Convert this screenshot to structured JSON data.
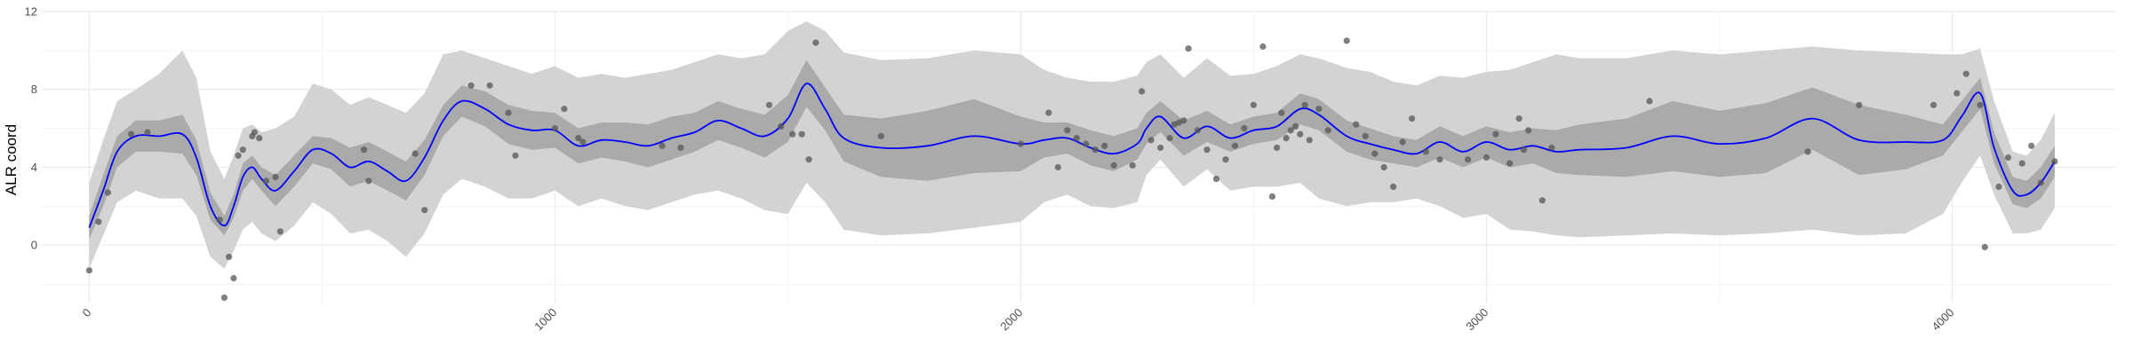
{
  "chart_data": {
    "type": "line",
    "title": "",
    "xlabel": "",
    "ylabel": "ALR coord",
    "xlim": [
      -100,
      4350
    ],
    "ylim": [
      -3,
      12
    ],
    "x_ticks": [
      0,
      1000,
      2000,
      3000,
      4000
    ],
    "x_tick_labels": [
      "0",
      "1000",
      "2000",
      "3000",
      "4000"
    ],
    "y_ticks": [
      0,
      4,
      8,
      12
    ],
    "y_tick_labels": [
      "0",
      "4",
      "8",
      "12"
    ],
    "grid": true,
    "legend": "none",
    "series": [
      {
        "role": "mean",
        "color": "#0000ff",
        "x": [
          0,
          30,
          60,
          100,
          150,
          200,
          230,
          260,
          290,
          310,
          330,
          350,
          370,
          400,
          440,
          480,
          520,
          560,
          600,
          640,
          680,
          720,
          760,
          800,
          850,
          900,
          950,
          1000,
          1050,
          1100,
          1150,
          1200,
          1250,
          1300,
          1350,
          1400,
          1450,
          1500,
          1540,
          1580,
          1620,
          1700,
          1800,
          1900,
          2000,
          2050,
          2100,
          2150,
          2200,
          2250,
          2270,
          2300,
          2350,
          2400,
          2450,
          2500,
          2550,
          2600,
          2640,
          2700,
          2750,
          2800,
          2850,
          2900,
          2950,
          3000,
          3050,
          3100,
          3150,
          3200,
          3300,
          3400,
          3500,
          3600,
          3700,
          3800,
          3900,
          3980,
          4020,
          4060,
          4090,
          4130,
          4160,
          4190,
          4220
        ],
        "y": [
          0.9,
          2.8,
          4.8,
          5.6,
          5.6,
          5.7,
          4.5,
          2.0,
          1.0,
          2.0,
          3.5,
          4.0,
          3.4,
          2.8,
          3.8,
          4.9,
          4.7,
          4.0,
          4.3,
          3.8,
          3.3,
          4.5,
          6.4,
          7.4,
          7.0,
          6.2,
          5.9,
          5.9,
          5.1,
          5.4,
          5.3,
          5.1,
          5.5,
          5.8,
          6.4,
          6.0,
          5.6,
          6.5,
          8.3,
          7.0,
          5.5,
          5.0,
          5.1,
          5.6,
          5.2,
          5.4,
          5.5,
          5.0,
          4.7,
          5.2,
          6.0,
          6.6,
          5.5,
          6.1,
          5.5,
          5.9,
          6.1,
          7.0,
          6.7,
          5.6,
          5.2,
          4.9,
          4.7,
          5.3,
          4.8,
          5.3,
          4.9,
          5.1,
          4.8,
          4.9,
          5.0,
          5.6,
          5.2,
          5.5,
          6.5,
          5.4,
          5.3,
          5.4,
          6.6,
          7.8,
          5.0,
          2.8,
          2.6,
          3.2,
          4.3
        ]
      },
      {
        "role": "inner-band",
        "color": "#aaaaaa",
        "x": [
          0,
          30,
          60,
          100,
          150,
          200,
          230,
          260,
          290,
          310,
          330,
          350,
          370,
          400,
          440,
          480,
          520,
          560,
          600,
          640,
          680,
          720,
          760,
          800,
          850,
          900,
          950,
          1000,
          1050,
          1100,
          1150,
          1200,
          1250,
          1300,
          1350,
          1400,
          1450,
          1500,
          1540,
          1580,
          1620,
          1700,
          1800,
          1900,
          2000,
          2050,
          2100,
          2150,
          2200,
          2250,
          2270,
          2300,
          2350,
          2400,
          2450,
          2500,
          2550,
          2600,
          2640,
          2700,
          2750,
          2800,
          2850,
          2900,
          2950,
          3000,
          3050,
          3100,
          3150,
          3200,
          3300,
          3400,
          3500,
          3600,
          3700,
          3800,
          3900,
          3980,
          4020,
          4060,
          4090,
          4130,
          4160,
          4190,
          4220
        ],
        "lower": [
          0.3,
          2.0,
          4.0,
          4.8,
          4.8,
          4.7,
          3.6,
          1.3,
          0.5,
          1.4,
          2.8,
          3.4,
          2.8,
          2.0,
          3.0,
          4.2,
          3.9,
          3.0,
          3.3,
          2.8,
          2.3,
          3.6,
          5.6,
          6.6,
          6.1,
          5.2,
          4.9,
          5.0,
          4.2,
          4.5,
          4.3,
          4.0,
          4.4,
          4.8,
          5.4,
          5.0,
          4.5,
          5.3,
          7.1,
          5.9,
          4.3,
          3.5,
          3.3,
          3.7,
          3.8,
          4.5,
          4.7,
          4.1,
          3.8,
          4.4,
          5.2,
          5.8,
          4.6,
          5.3,
          4.8,
          5.2,
          5.4,
          6.2,
          5.9,
          4.8,
          4.4,
          4.2,
          4.0,
          4.5,
          4.0,
          4.5,
          4.0,
          4.2,
          3.7,
          3.6,
          3.5,
          3.8,
          3.5,
          3.7,
          4.9,
          3.6,
          3.9,
          4.6,
          5.8,
          7.0,
          4.2,
          2.1,
          1.9,
          2.4,
          3.5
        ],
        "upper": [
          1.5,
          3.6,
          5.6,
          6.4,
          6.4,
          6.7,
          5.4,
          2.7,
          1.5,
          2.6,
          4.2,
          4.6,
          4.0,
          3.6,
          4.6,
          5.6,
          5.5,
          5.0,
          5.3,
          4.8,
          4.3,
          5.4,
          7.2,
          8.2,
          7.9,
          7.2,
          6.9,
          6.8,
          6.0,
          6.3,
          6.3,
          6.2,
          6.6,
          6.8,
          7.4,
          7.0,
          6.7,
          7.7,
          9.5,
          8.1,
          6.7,
          6.5,
          6.9,
          7.5,
          6.6,
          6.3,
          6.3,
          5.9,
          5.6,
          6.0,
          6.8,
          7.4,
          6.4,
          6.9,
          6.2,
          6.6,
          6.8,
          7.8,
          7.5,
          6.4,
          6.0,
          5.6,
          5.4,
          6.1,
          5.6,
          6.1,
          5.8,
          6.0,
          5.9,
          6.2,
          6.5,
          7.4,
          6.9,
          7.3,
          8.1,
          7.2,
          6.7,
          6.2,
          7.4,
          8.6,
          5.8,
          3.5,
          3.3,
          4.0,
          5.1
        ]
      },
      {
        "role": "outer-band",
        "color": "#d3d3d3",
        "x": [
          0,
          30,
          60,
          100,
          150,
          200,
          230,
          260,
          290,
          310,
          330,
          350,
          370,
          400,
          440,
          480,
          520,
          560,
          600,
          640,
          680,
          720,
          760,
          800,
          850,
          900,
          950,
          1000,
          1050,
          1100,
          1150,
          1200,
          1250,
          1300,
          1350,
          1400,
          1450,
          1500,
          1540,
          1580,
          1620,
          1700,
          1800,
          1900,
          2000,
          2050,
          2100,
          2150,
          2200,
          2250,
          2270,
          2300,
          2350,
          2400,
          2450,
          2500,
          2550,
          2600,
          2640,
          2700,
          2750,
          2800,
          2850,
          2900,
          2950,
          3000,
          3050,
          3100,
          3150,
          3200,
          3300,
          3400,
          3500,
          3600,
          3700,
          3800,
          3900,
          3980,
          4020,
          4060,
          4090,
          4130,
          4160,
          4190,
          4220
        ],
        "lower": [
          -1.2,
          0.5,
          2.2,
          2.8,
          2.4,
          2.4,
          1.5,
          -0.6,
          -1.2,
          -0.3,
          0.8,
          1.2,
          0.6,
          0.2,
          1.0,
          2.2,
          1.6,
          0.6,
          0.8,
          0.2,
          -0.6,
          0.6,
          2.6,
          3.4,
          3.0,
          2.4,
          2.4,
          2.8,
          2.0,
          2.4,
          2.0,
          1.8,
          2.2,
          2.6,
          2.8,
          2.4,
          1.8,
          1.6,
          3.2,
          2.2,
          0.8,
          0.5,
          0.6,
          0.9,
          1.2,
          2.2,
          2.6,
          2.0,
          1.9,
          2.2,
          3.6,
          4.4,
          3.0,
          3.9,
          2.8,
          3.0,
          3.0,
          3.2,
          2.4,
          2.0,
          2.2,
          2.2,
          2.4,
          2.0,
          1.4,
          1.6,
          0.8,
          0.7,
          0.5,
          0.4,
          0.5,
          0.6,
          0.5,
          0.6,
          0.8,
          0.5,
          0.6,
          1.6,
          3.2,
          4.6,
          2.6,
          0.6,
          0.6,
          0.8,
          1.9
        ],
        "upper": [
          3.2,
          5.4,
          7.4,
          8.0,
          8.8,
          10.0,
          8.6,
          4.8,
          3.4,
          4.6,
          6.0,
          6.2,
          5.8,
          6.0,
          6.6,
          8.3,
          8.0,
          7.2,
          7.6,
          7.2,
          6.8,
          7.8,
          9.8,
          10.0,
          9.6,
          9.2,
          8.8,
          9.2,
          8.6,
          8.8,
          8.6,
          8.8,
          9.0,
          9.4,
          9.8,
          9.6,
          9.8,
          11.0,
          11.5,
          11.0,
          9.9,
          9.5,
          9.6,
          10.0,
          9.8,
          9.0,
          8.6,
          8.4,
          8.4,
          8.7,
          9.4,
          9.8,
          8.6,
          9.6,
          8.7,
          8.8,
          9.2,
          9.8,
          9.6,
          9.1,
          8.9,
          8.4,
          8.2,
          8.7,
          8.6,
          8.9,
          9.0,
          9.4,
          9.8,
          9.6,
          9.6,
          10.0,
          9.8,
          10.0,
          10.2,
          10.0,
          9.9,
          9.8,
          9.8,
          10.1,
          7.4,
          4.8,
          4.6,
          5.4,
          6.8
        ]
      },
      {
        "role": "observations",
        "color": "#555555",
        "x": [
          0,
          20,
          40,
          90,
          125,
          280,
          290,
          300,
          310,
          320,
          330,
          350,
          355,
          365,
          380,
          400,
          410,
          590,
          600,
          700,
          720,
          820,
          860,
          900,
          915,
          1000,
          1020,
          1050,
          1060,
          1230,
          1270,
          1460,
          1485,
          1510,
          1530,
          1545,
          1560,
          1700,
          2000,
          2060,
          2080,
          2100,
          2120,
          2140,
          2160,
          2180,
          2200,
          2240,
          2260,
          2280,
          2300,
          2320,
          2330,
          2340,
          2350,
          2360,
          2380,
          2400,
          2420,
          2440,
          2460,
          2480,
          2500,
          2520,
          2540,
          2550,
          2560,
          2570,
          2580,
          2590,
          2600,
          2610,
          2620,
          2640,
          2660,
          2700,
          2720,
          2740,
          2760,
          2780,
          2800,
          2820,
          2840,
          2870,
          2900,
          2960,
          3000,
          3020,
          3050,
          3070,
          3080,
          3090,
          3120,
          3140,
          3350,
          3690,
          3800,
          3960,
          4010,
          4030,
          4060,
          4070,
          4100,
          4120,
          4150,
          4170,
          4190,
          4220
        ],
        "y": [
          -1.3,
          1.2,
          2.7,
          5.7,
          5.8,
          1.3,
          -2.7,
          -0.6,
          -1.7,
          4.6,
          4.9,
          5.6,
          5.8,
          5.5,
          3.3,
          3.5,
          0.7,
          4.9,
          3.3,
          4.7,
          1.8,
          8.2,
          8.2,
          6.8,
          4.6,
          6.0,
          7.0,
          5.5,
          5.3,
          5.1,
          5.0,
          7.2,
          6.1,
          5.7,
          5.7,
          4.4,
          10.4,
          5.6,
          5.2,
          6.8,
          4.0,
          5.9,
          5.5,
          5.2,
          4.9,
          5.1,
          4.1,
          4.1,
          7.9,
          5.4,
          5.0,
          5.5,
          6.2,
          6.3,
          6.4,
          10.1,
          5.9,
          4.9,
          3.4,
          4.4,
          5.1,
          6.0,
          7.2,
          10.2,
          2.5,
          5.0,
          6.8,
          5.5,
          5.9,
          6.1,
          5.7,
          7.2,
          5.4,
          7.0,
          5.9,
          10.5,
          6.2,
          5.6,
          4.7,
          4.0,
          3.0,
          5.3,
          6.5,
          4.8,
          4.4,
          4.4,
          4.5,
          5.7,
          4.2,
          6.5,
          4.9,
          5.9,
          2.3,
          5.0,
          7.4,
          4.8,
          7.2,
          7.2,
          7.8,
          8.8,
          7.2,
          -0.1,
          3.0,
          4.5,
          4.2,
          5.1,
          3.2,
          4.3
        ]
      }
    ]
  }
}
